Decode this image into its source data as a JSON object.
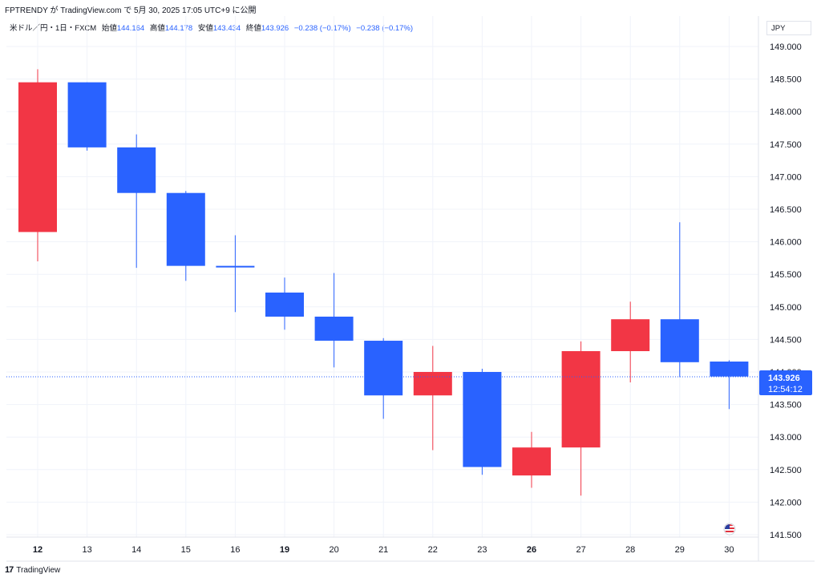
{
  "header": {
    "published_line": "FPTRENDY が TradingView.com で 5月 30, 2025 17:05 UTC+9 に公開"
  },
  "legend": {
    "symbol": "米ドル／円・1日・FXCM",
    "open_label": "始値",
    "open": "144.164",
    "high_label": "高値",
    "high": "144.178",
    "low_label": "安値",
    "low": "143.434",
    "close_label": "終値",
    "close": "143.926",
    "change": "−0.238 (−0.17%)",
    "change2": "−0.238 (−0.17%)"
  },
  "currency_button": "JPY",
  "last_price": {
    "price": "143.926",
    "countdown": "12:54:12",
    "value": 143.926
  },
  "brand": "TradingView",
  "colors": {
    "up": "#f23645",
    "down": "#2962ff",
    "grid": "#f0f3fa",
    "last": "#2962ff"
  },
  "chart_data": {
    "type": "candlestick",
    "y_ticks": [
      "149.000",
      "148.500",
      "148.000",
      "147.500",
      "147.000",
      "146.500",
      "146.000",
      "145.500",
      "145.000",
      "144.500",
      "144.000",
      "143.500",
      "143.000",
      "142.500",
      "142.000",
      "141.500"
    ],
    "ylim": [
      141.5,
      149.0
    ],
    "categories": [
      "12",
      "13",
      "14",
      "15",
      "16",
      "19",
      "20",
      "21",
      "22",
      "23",
      "26",
      "27",
      "28",
      "29",
      "30"
    ],
    "bold_categories": [
      "12",
      "19",
      "26"
    ],
    "candles": [
      {
        "x": "12",
        "open": 146.15,
        "high": 148.65,
        "low": 145.7,
        "close": 148.45
      },
      {
        "x": "13",
        "open": 148.45,
        "high": 148.45,
        "low": 147.4,
        "close": 147.45
      },
      {
        "x": "14",
        "open": 147.45,
        "high": 147.65,
        "low": 145.6,
        "close": 146.75
      },
      {
        "x": "15",
        "open": 146.75,
        "high": 146.78,
        "low": 145.4,
        "close": 145.63
      },
      {
        "x": "16",
        "open": 145.63,
        "high": 146.1,
        "low": 144.92,
        "close": 145.62
      },
      {
        "x": "19",
        "open": 145.22,
        "high": 145.45,
        "low": 144.65,
        "close": 144.85
      },
      {
        "x": "20",
        "open": 144.85,
        "high": 145.52,
        "low": 144.07,
        "close": 144.48
      },
      {
        "x": "21",
        "open": 144.48,
        "high": 144.52,
        "low": 143.28,
        "close": 143.64
      },
      {
        "x": "22",
        "open": 143.64,
        "high": 144.4,
        "low": 142.8,
        "close": 144.0
      },
      {
        "x": "23",
        "open": 144.0,
        "high": 144.05,
        "low": 142.42,
        "close": 142.54
      },
      {
        "x": "26",
        "open": 142.41,
        "high": 143.08,
        "low": 142.22,
        "close": 142.84
      },
      {
        "x": "27",
        "open": 142.84,
        "high": 144.47,
        "low": 142.1,
        "close": 144.32
      },
      {
        "x": "28",
        "open": 144.32,
        "high": 145.08,
        "low": 143.84,
        "close": 144.81
      },
      {
        "x": "29",
        "open": 144.81,
        "high": 146.3,
        "low": 143.92,
        "close": 144.15
      },
      {
        "x": "30",
        "open": 144.16,
        "high": 144.18,
        "low": 143.43,
        "close": 143.93
      }
    ]
  }
}
